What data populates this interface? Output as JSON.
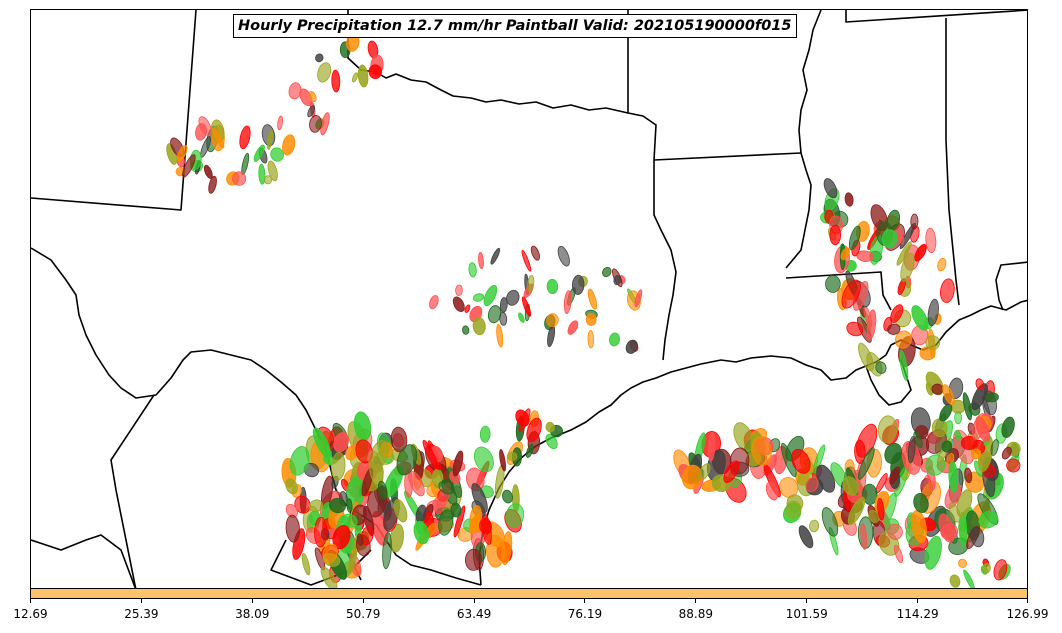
{
  "title": "Hourly Precipitation 12.7 mm/hr Paintball Valid: 202105190000f015",
  "colorbar": {
    "color": "#fbc36a",
    "ticks": [
      "12.69",
      "25.39",
      "38.09",
      "50.79",
      "63.49",
      "76.19",
      "88.89",
      "101.59",
      "114.29",
      "126.99"
    ]
  },
  "member_colors": [
    "#ff0000",
    "#ff8c00",
    "#32cd32",
    "#9aa51e",
    "#8b1a1a",
    "#1e6b1e",
    "#404040",
    "#ff5050"
  ],
  "map": {
    "region": "Texas and Gulf Coast",
    "boundaries": "state borders and coastline in black"
  }
}
